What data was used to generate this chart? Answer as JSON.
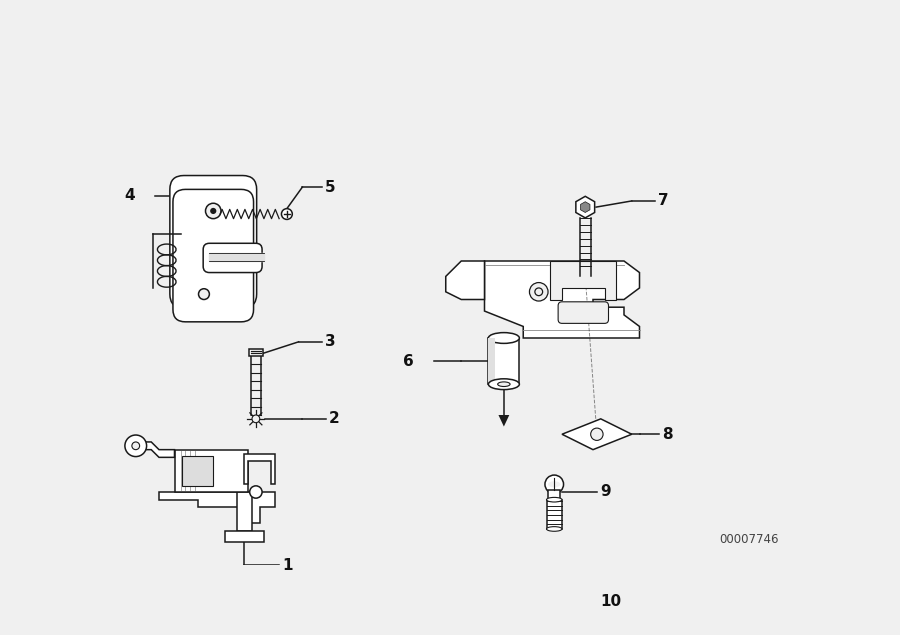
{
  "background_color": "#f0f0f0",
  "diagram_id": "00007746",
  "fig_width": 9.0,
  "fig_height": 6.35,
  "line_color": "#1a1a1a",
  "text_color": "#111111",
  "label_fontsize": 11,
  "id_fontsize": 8.5
}
